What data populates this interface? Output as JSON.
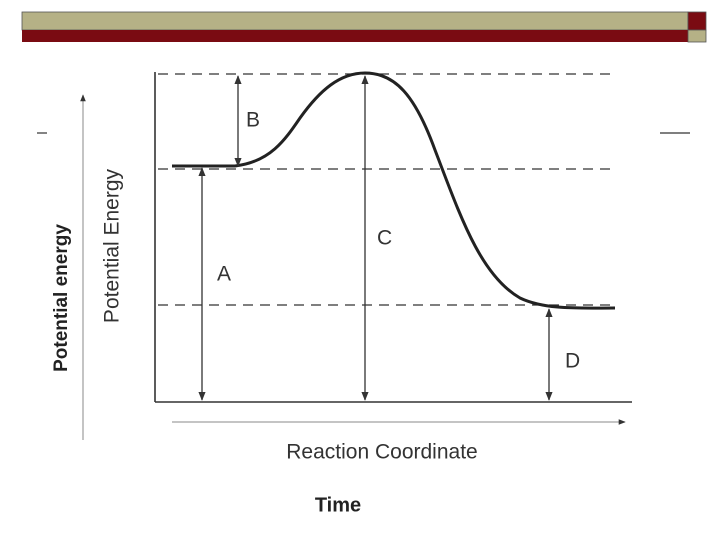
{
  "outer_axes": {
    "y_label": "Potential energy",
    "x_label": "Time"
  },
  "diagram": {
    "y_label": "Potential Energy",
    "x_label": "Reaction Coordinate",
    "labels": {
      "a": "A",
      "b": "B",
      "c": "C",
      "d": "D"
    }
  }
}
